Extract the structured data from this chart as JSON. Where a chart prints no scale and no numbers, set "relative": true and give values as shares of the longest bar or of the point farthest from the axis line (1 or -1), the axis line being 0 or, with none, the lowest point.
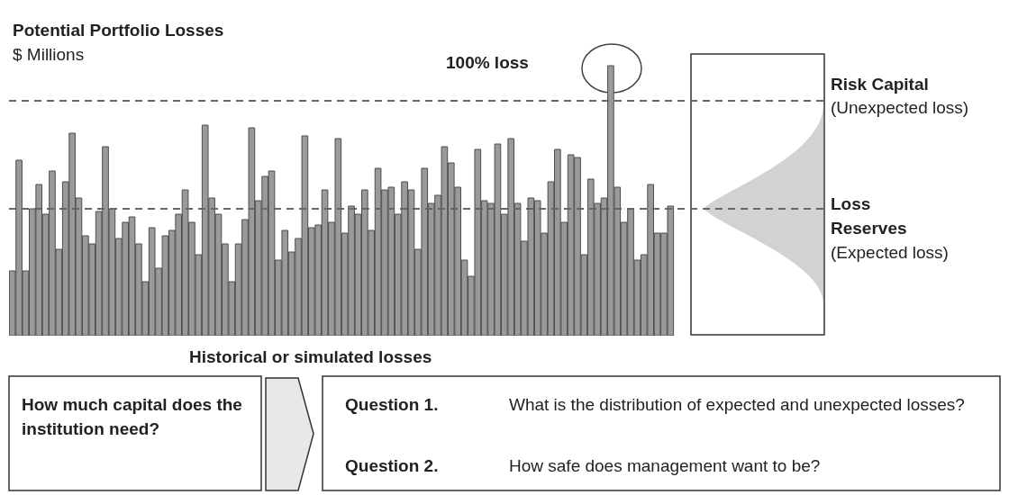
{
  "chart_data": {
    "type": "bar",
    "title": "Potential Portfolio Losses",
    "subtitle": "$ Millions",
    "relative": true,
    "color": "#9a9a9a",
    "categories": [
      null,
      null,
      null,
      null,
      null,
      null,
      null,
      null,
      null,
      null,
      null,
      null,
      null,
      null,
      null,
      null,
      null,
      null,
      null,
      null,
      null,
      null,
      null,
      null,
      null,
      null,
      null,
      null,
      null,
      null,
      null,
      null,
      null,
      null,
      null,
      null,
      null,
      null,
      null,
      null,
      null,
      null,
      null,
      null,
      null,
      null,
      null,
      null,
      null,
      null,
      null,
      null,
      null,
      null,
      null,
      null,
      null,
      null,
      null,
      null,
      null,
      null,
      null,
      null,
      null,
      null,
      null,
      null,
      null,
      null,
      null,
      null,
      null,
      null,
      null,
      null,
      null,
      null,
      null,
      null,
      null,
      null,
      null,
      null,
      null,
      null,
      null,
      null,
      null,
      null,
      null,
      null,
      null,
      null,
      null,
      null,
      null,
      null,
      null,
      null
    ],
    "values": [
      0.24,
      0.65,
      0.24,
      0.47,
      0.56,
      0.45,
      0.61,
      0.32,
      0.57,
      0.75,
      0.51,
      0.37,
      0.34,
      0.46,
      0.7,
      0.47,
      0.36,
      0.42,
      0.44,
      0.34,
      0.2,
      0.4,
      0.25,
      0.37,
      0.39,
      0.45,
      0.54,
      0.42,
      0.3,
      0.78,
      0.51,
      0.45,
      0.34,
      0.2,
      0.34,
      0.43,
      0.77,
      0.5,
      0.59,
      0.61,
      0.28,
      0.39,
      0.31,
      0.36,
      0.74,
      0.4,
      0.41,
      0.54,
      0.42,
      0.73,
      0.38,
      0.48,
      0.45,
      0.54,
      0.39,
      0.62,
      0.54,
      0.55,
      0.45,
      0.57,
      0.54,
      0.32,
      0.62,
      0.49,
      0.52,
      0.7,
      0.64,
      0.55,
      0.28,
      0.22,
      0.69,
      0.5,
      0.49,
      0.71,
      0.45,
      0.73,
      0.49,
      0.35,
      0.51,
      0.5,
      0.38,
      0.57,
      0.69,
      0.42,
      0.67,
      0.66,
      0.3,
      0.58,
      0.49,
      0.51,
      1.0,
      0.55,
      0.42,
      0.47,
      0.28,
      0.3,
      0.56,
      0.38,
      0.38,
      0.48
    ],
    "ref_lines": [
      {
        "axis": "y",
        "value": 0.87,
        "color": "#666666",
        "line_style": "dashed"
      },
      {
        "axis": "y",
        "value": 0.47,
        "color": "#666666",
        "line_style": "dashed"
      }
    ],
    "annotations": [
      "100% loss",
      "Risk Capital",
      "(Unexpected loss)",
      "Loss Reserves",
      "(Expected loss)",
      "Historical or simulated losses",
      "How much capital does the institution need?",
      "Question 1.",
      "What is the distribution of expected and unexpected losses?",
      "Question 2.",
      "How safe does management want to be?"
    ]
  }
}
